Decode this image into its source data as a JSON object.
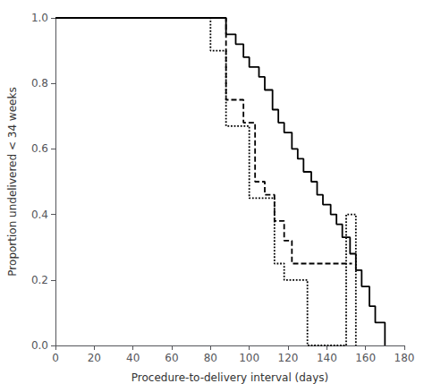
{
  "chart_data": {
    "type": "step",
    "xlabel": "Procedure-to-delivery interval (days)",
    "ylabel": "Proportion undelivered < 34 weeks",
    "xlim": [
      0,
      180
    ],
    "ylim": [
      0.0,
      1.0
    ],
    "xticks": [
      0,
      20,
      40,
      60,
      80,
      100,
      120,
      140,
      160,
      180
    ],
    "yticks": [
      {
        "value": 0.0,
        "label": "0.0"
      },
      0.2,
      0.4,
      0.6,
      0.8,
      {
        "value": 1.0,
        "label": "1.0"
      }
    ],
    "grid": false,
    "series": [
      {
        "color": "#000000",
        "line_style": "solid",
        "x": [
          0,
          83,
          88,
          93,
          97,
          100,
          105,
          108,
          112,
          115,
          118,
          122,
          125,
          128,
          132,
          135,
          138,
          142,
          145,
          148,
          152,
          155,
          158,
          162,
          165,
          170
        ],
        "values": [
          1.0,
          1.0,
          0.95,
          0.92,
          0.88,
          0.85,
          0.82,
          0.78,
          0.72,
          0.68,
          0.65,
          0.6,
          0.57,
          0.53,
          0.5,
          0.46,
          0.43,
          0.4,
          0.37,
          0.33,
          0.28,
          0.23,
          0.18,
          0.12,
          0.07,
          0.0
        ]
      },
      {
        "color": "#000000",
        "line_style": "dashed",
        "x": [
          0,
          83,
          88,
          97,
          103,
          108,
          113,
          118,
          122,
          128,
          133,
          153
        ],
        "values": [
          1.0,
          1.0,
          0.75,
          0.68,
          0.5,
          0.46,
          0.38,
          0.32,
          0.25,
          0.25,
          0.25,
          0.25
        ]
      },
      {
        "color": "#000000",
        "line_style": "dotted",
        "x": [
          0,
          38,
          80,
          88,
          95,
          100,
          108,
          113,
          118,
          130,
          150,
          155
        ],
        "values": [
          1.0,
          1.0,
          0.9,
          0.67,
          0.67,
          0.45,
          0.45,
          0.25,
          0.2,
          0.0,
          0.4,
          0.0
        ]
      }
    ]
  }
}
